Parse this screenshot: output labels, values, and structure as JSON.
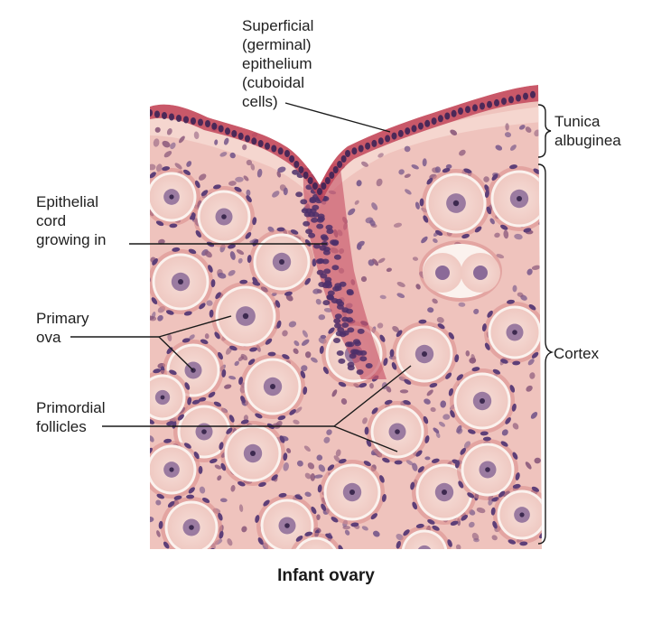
{
  "labels": {
    "superficial_epithelium": "Superficial\n(germinal)\nepithelium\n(cuboidal\ncells)",
    "tunica_albuginea": "Tunica\nalbuginea",
    "epithelial_cord": "Epithelial\ncord\ngrowing in",
    "primary_ova": "Primary\nova",
    "cortex": "Cortex",
    "primordial_follicles": "Primordial\nfollicles"
  },
  "caption": "Infant ovary",
  "colors": {
    "stroma": "#efc3bd",
    "epithelium": "#c2455a",
    "nucleus": "#6a4e86",
    "oocyte": "#f7e2dc",
    "zona": "#fbf2ee",
    "leader": "#1a1a1a"
  }
}
